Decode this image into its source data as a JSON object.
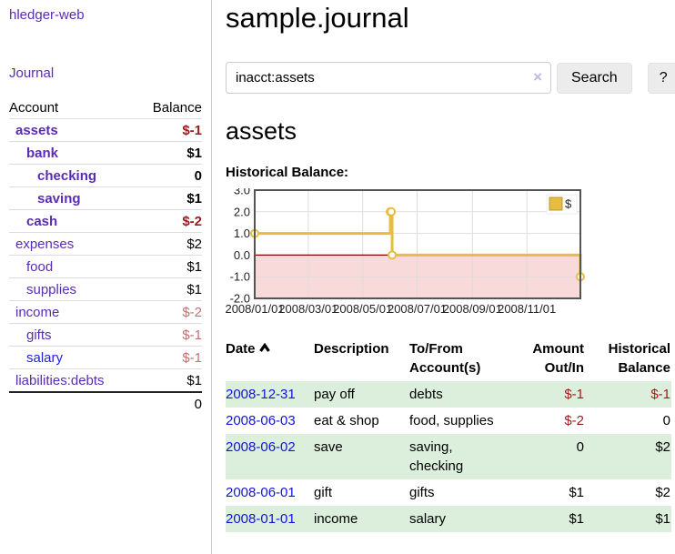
{
  "sidebar": {
    "brand": "hledger-web",
    "nav_journal": "Journal",
    "accounts": {
      "headers": {
        "account": "Account",
        "balance": "Balance"
      },
      "rows": [
        {
          "name": "assets",
          "balance": "$-1",
          "depth": 1,
          "bold": true,
          "balance_style": "negative",
          "link_style": "visited"
        },
        {
          "name": "bank",
          "balance": "$1",
          "depth": 2,
          "bold": true,
          "balance_style": "normal",
          "link_style": "visited"
        },
        {
          "name": "checking",
          "balance": "0",
          "depth": 3,
          "bold": true,
          "balance_style": "normal",
          "link_style": "visited"
        },
        {
          "name": "saving",
          "balance": "$1",
          "depth": 3,
          "bold": true,
          "balance_style": "normal",
          "link_style": "visited"
        },
        {
          "name": "cash",
          "balance": "$-2",
          "depth": 2,
          "bold": true,
          "balance_style": "negative",
          "link_style": "visited"
        },
        {
          "name": "expenses",
          "balance": "$2",
          "depth": 1,
          "bold": false,
          "balance_style": "normal",
          "link_style": "visited"
        },
        {
          "name": "food",
          "balance": "$1",
          "depth": 2,
          "bold": false,
          "balance_style": "normal",
          "link_style": "visited"
        },
        {
          "name": "supplies",
          "balance": "$1",
          "depth": 2,
          "bold": false,
          "balance_style": "normal",
          "link_style": "visited"
        },
        {
          "name": "income",
          "balance": "$-2",
          "depth": 1,
          "bold": false,
          "balance_style": "negative-muted",
          "link_style": "visited"
        },
        {
          "name": "gifts",
          "balance": "$-1",
          "depth": 2,
          "bold": false,
          "balance_style": "negative-muted",
          "link_style": "visited"
        },
        {
          "name": "salary",
          "balance": "$-1",
          "depth": 2,
          "bold": false,
          "balance_style": "negative-muted",
          "link_style": "unvisited"
        },
        {
          "name": "liabilities:debts",
          "balance": "$1",
          "depth": 1,
          "bold": false,
          "balance_style": "normal",
          "link_style": "visited"
        }
      ],
      "total": "0"
    }
  },
  "main": {
    "title": "sample.journal",
    "search": {
      "value": "inacct:assets",
      "clear_icon": "×",
      "search_label": "Search",
      "help_label": "?"
    },
    "account_heading": "assets",
    "section_label": "Historical Balance:"
  },
  "chart_data": {
    "type": "line",
    "step": true,
    "title": "Historical Balance",
    "series": [
      {
        "name": "$",
        "color": "#e8bc3f",
        "points": [
          [
            "2008-01-01",
            1
          ],
          [
            "2008-06-01",
            2
          ],
          [
            "2008-06-02",
            2
          ],
          [
            "2008-06-03",
            0
          ],
          [
            "2008-12-31",
            -1
          ]
        ]
      }
    ],
    "xrange": [
      "2008-01-01",
      "2008-12-31"
    ],
    "ylim": [
      -2,
      3
    ],
    "x_tick_dates": [
      "2008-01-01",
      "2008-03-01",
      "2008-05-01",
      "2008-07-01",
      "2008-09-01",
      "2008-11-01"
    ],
    "x_tick_labels": [
      "2008/01/01",
      "2008/03/01",
      "2008/05/01",
      "2008/07/01",
      "2008/09/01",
      "2008/11/01"
    ],
    "y_ticks": [
      3,
      2,
      1,
      0,
      -1,
      -2
    ],
    "y_tick_labels": [
      "3.0",
      "2.0",
      "1.0",
      "0.0",
      "-1.0",
      "-2.0"
    ],
    "grid": true,
    "legend_position": "top-right",
    "zero_line_color": "#8b0000",
    "negative_region_color": "#f9dada",
    "border_color": "#545454",
    "grid_color": "#dddddd"
  },
  "register": {
    "headers": {
      "date": "Date",
      "description": "Description",
      "account": "To/From Account(s)",
      "amount": "Amount Out/In",
      "balance": "Historical Balance"
    },
    "rows": [
      {
        "date": "2008-12-31",
        "description": "pay off",
        "account": "debts",
        "amount": "$-1",
        "balance": "$-1",
        "amount_style": "negative",
        "balance_style": "negative"
      },
      {
        "date": "2008-06-03",
        "description": "eat & shop",
        "account": "food, supplies",
        "amount": "$-2",
        "balance": "0",
        "amount_style": "negative",
        "balance_style": "normal"
      },
      {
        "date": "2008-06-02",
        "description": "save",
        "account": "saving, checking",
        "amount": "0",
        "balance": "$2",
        "amount_style": "normal",
        "balance_style": "normal"
      },
      {
        "date": "2008-06-01",
        "description": "gift",
        "account": "gifts",
        "amount": "$1",
        "balance": "$2",
        "amount_style": "normal",
        "balance_style": "normal"
      },
      {
        "date": "2008-01-01",
        "description": "income",
        "account": "salary",
        "amount": "$1",
        "balance": "$1",
        "amount_style": "normal",
        "balance_style": "normal"
      }
    ]
  },
  "colors": {
    "accent_purple": "#5a2cb5",
    "link_blue": "#1313dd",
    "negative": "#9e1a1a",
    "negative_muted": "#c17270",
    "row_stripe": "#dcefdc",
    "chart_line": "#e8bc3f"
  },
  "icons": {
    "sort_ascending": "chevron-up",
    "search_clear": "×",
    "legend_swatch": "yellow-square"
  }
}
